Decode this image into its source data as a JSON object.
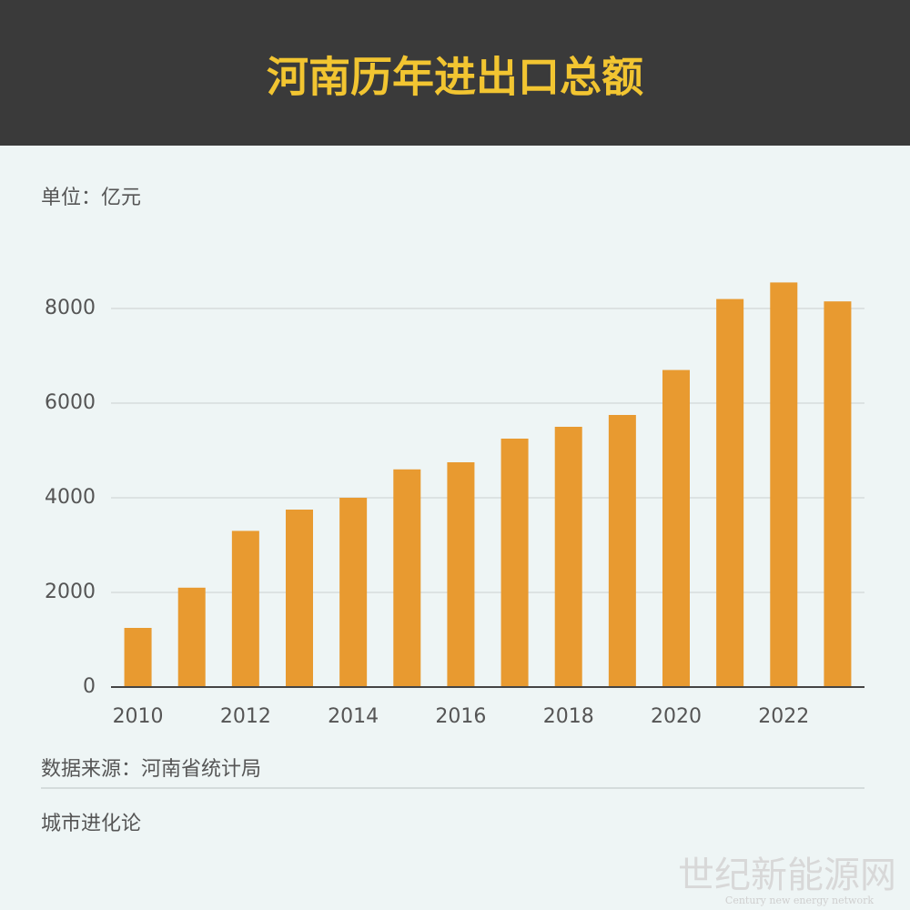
{
  "chart_data": {
    "type": "bar",
    "title": "河南历年进出口总额",
    "unit": "单位：亿元",
    "categories": [
      "2010",
      null,
      "2012",
      null,
      "2014",
      null,
      "2016",
      null,
      "2018",
      null,
      "2020",
      null,
      "2022",
      null
    ],
    "values": [
      1250,
      2100,
      3300,
      3750,
      4000,
      4600,
      4750,
      5250,
      5500,
      5750,
      6700,
      8200,
      8550,
      8150
    ],
    "color": "#e89a30",
    "ylim": [
      0,
      8800
    ],
    "yticks": [
      0,
      2000,
      4000,
      6000,
      8000
    ],
    "grid": true,
    "source": "数据来源：河南省统计局",
    "brand": "城市进化论",
    "watermark": "世纪新能源网",
    "watermark_sub": "Century new energy network"
  }
}
